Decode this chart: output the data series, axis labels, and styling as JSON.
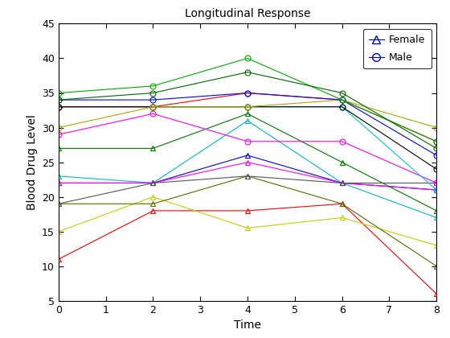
{
  "title": "Longitudinal Response",
  "xlabel": "Time",
  "ylabel": "Blood Drug Level",
  "time_points": [
    0,
    2,
    4,
    6,
    8
  ],
  "xlim": [
    0,
    8
  ],
  "ylim": [
    5,
    45
  ],
  "xticks": [
    0,
    1,
    2,
    3,
    4,
    5,
    6,
    7,
    8
  ],
  "yticks": [
    5,
    10,
    15,
    20,
    25,
    30,
    35,
    40,
    45
  ],
  "subjects": [
    {
      "sex": "Female",
      "color": "#FF0000",
      "values": [
        11,
        18,
        18,
        19,
        6
      ]
    },
    {
      "sex": "Female",
      "color": "#CCCC00",
      "values": [
        15,
        20,
        15.5,
        17,
        13
      ]
    },
    {
      "sex": "Female",
      "color": "#556B00",
      "values": [
        19,
        19,
        23,
        19,
        10
      ]
    },
    {
      "sex": "Female",
      "color": "#00BBBB",
      "values": [
        23,
        22,
        31,
        22,
        17
      ]
    },
    {
      "sex": "Female",
      "color": "#0000FF",
      "values": [
        22,
        22,
        26,
        22,
        21
      ]
    },
    {
      "sex": "Female",
      "color": "#FF00FF",
      "values": [
        22,
        22,
        25,
        22,
        21
      ]
    },
    {
      "sex": "Female",
      "color": "#007700",
      "values": [
        27,
        27,
        32,
        25,
        18
      ]
    },
    {
      "sex": "Female",
      "color": "#555555",
      "values": [
        19,
        22,
        23,
        22,
        22
      ]
    },
    {
      "sex": "Male",
      "color": "#FF00FF",
      "values": [
        29,
        32,
        28,
        28,
        22
      ]
    },
    {
      "sex": "Male",
      "color": "#00CCCC",
      "values": [
        33,
        33,
        33,
        33,
        21
      ]
    },
    {
      "sex": "Male",
      "color": "#FF0000",
      "values": [
        33,
        33,
        35,
        34,
        28
      ]
    },
    {
      "sex": "Male",
      "color": "#000000",
      "values": [
        33,
        33,
        33,
        33,
        24
      ]
    },
    {
      "sex": "Male",
      "color": "#AAAA00",
      "values": [
        30,
        33,
        33,
        34,
        30
      ]
    },
    {
      "sex": "Male",
      "color": "#0000FF",
      "values": [
        34,
        34,
        35,
        34,
        26
      ]
    },
    {
      "sex": "Male",
      "color": "#00AA00",
      "values": [
        35,
        36,
        40,
        34,
        28
      ]
    },
    {
      "sex": "Male",
      "color": "#006600",
      "values": [
        34,
        35,
        38,
        35,
        27
      ]
    }
  ]
}
